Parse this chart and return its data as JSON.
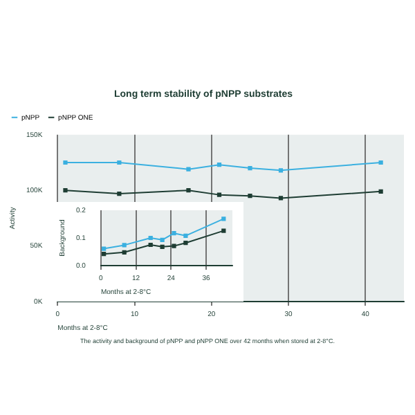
{
  "chart_data": [
    {
      "type": "line",
      "title": "Long term stability of pNPP substrates",
      "xlabel": "Months at 2-8°C",
      "ylabel": "Activity",
      "x": [
        1,
        8,
        17,
        21,
        25,
        29,
        42
      ],
      "series": [
        {
          "name": "pNPP",
          "color": "#3bb0e0",
          "values": [
            125000,
            125000,
            119000,
            123000,
            120000,
            118000,
            125000
          ]
        },
        {
          "name": "pNPP ONE",
          "color": "#1e3d33",
          "values": [
            100000,
            97000,
            100000,
            96000,
            95000,
            93000,
            99000
          ]
        }
      ],
      "xlim": [
        0,
        45
      ],
      "xticks": [
        0,
        10,
        20,
        30,
        40
      ],
      "ylim": [
        0,
        150000
      ],
      "yticks": [
        {
          "value": 0,
          "label": "0K"
        },
        {
          "value": 50000,
          "label": "50K"
        },
        {
          "value": 100000,
          "label": "100K"
        },
        {
          "value": 150000,
          "label": "150K"
        }
      ],
      "grid": "x",
      "legend": "top left",
      "marker": "square",
      "line_style": "solid",
      "annotations": [
        "The activity and background of pNPP and pNPP ONE over 42 months when stored at 2-8°C."
      ]
    },
    {
      "type": "line",
      "xlabel": "Months at 2-8°C",
      "ylabel": "Background",
      "x": [
        1,
        8,
        17,
        21,
        25,
        29,
        42
      ],
      "series": [
        {
          "color": "#3bb0e0",
          "values": [
            0.061,
            0.074,
            0.1,
            0.093,
            0.117,
            0.108,
            0.169
          ]
        },
        {
          "color": "#1e3d33",
          "values": [
            0.042,
            0.048,
            0.075,
            0.068,
            0.071,
            0.082,
            0.126
          ]
        }
      ],
      "xlim": [
        0,
        45
      ],
      "xticks": [
        0,
        12,
        24,
        36
      ],
      "ylim": [
        0,
        0.2
      ],
      "yticks": [
        {
          "value": 0,
          "label": "0.0"
        },
        {
          "value": 0.1,
          "label": "0.1"
        },
        {
          "value": 0.2,
          "label": "0.2"
        }
      ],
      "grid": "x",
      "marker": "square",
      "line_style": "solid"
    }
  ]
}
